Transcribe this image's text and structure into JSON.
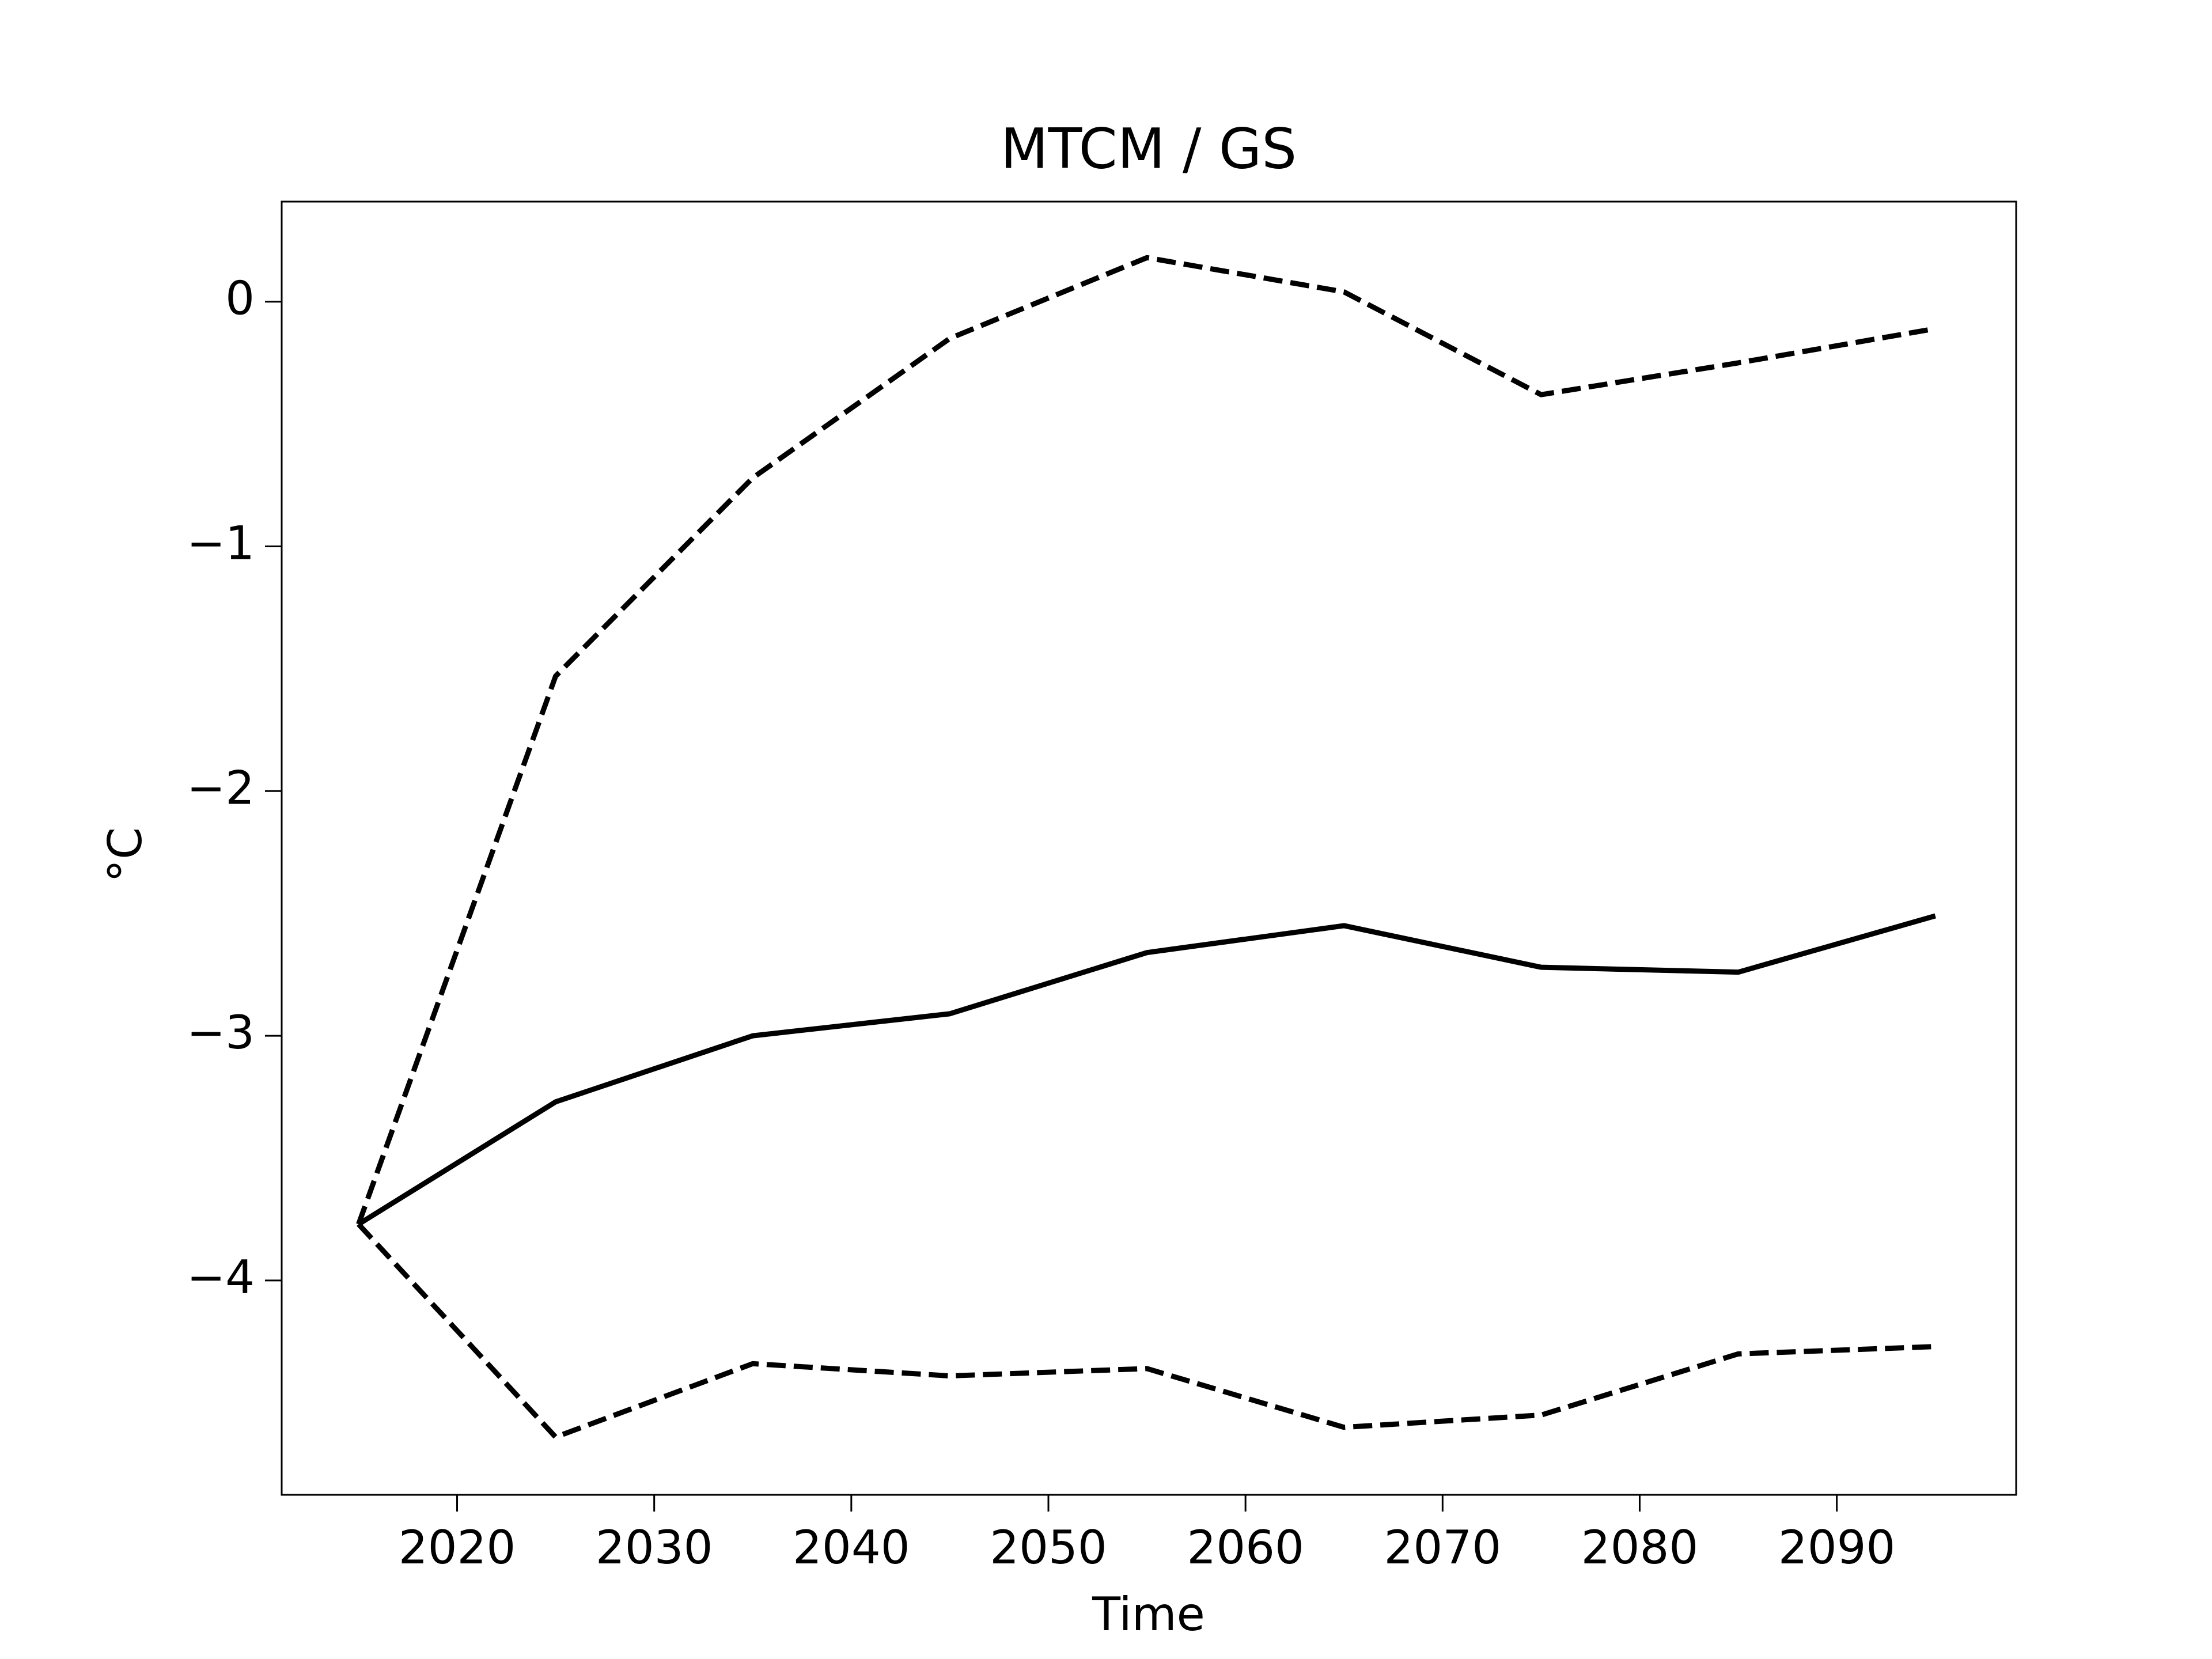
{
  "chart_data": {
    "type": "line",
    "title": "MTCM / GS",
    "x_label": "Time",
    "y_label": "°C",
    "x": [
      2015,
      2025,
      2035,
      2045,
      2055,
      2065,
      2075,
      2085,
      2095
    ],
    "series": [
      {
        "color": "#000000",
        "linestyle": "solid",
        "values": [
          -3.77,
          -3.27,
          -3.0,
          -2.91,
          -2.66,
          -2.55,
          -2.72,
          -2.74,
          -2.51
        ]
      },
      {
        "color": "#000000",
        "linestyle": "dashed",
        "values": [
          -3.77,
          -1.53,
          -0.72,
          -0.15,
          0.18,
          0.04,
          -0.38,
          -0.25,
          -0.11
        ]
      },
      {
        "color": "#000000",
        "linestyle": "dashed",
        "values": [
          -3.77,
          -4.64,
          -4.34,
          -4.39,
          -4.36,
          -4.6,
          -4.55,
          -4.3,
          -4.27
        ]
      }
    ],
    "xlim": [
      2011.1,
      2099.1
    ],
    "xticks": [
      2020,
      2030,
      2040,
      2050,
      2060,
      2070,
      2080,
      2090
    ],
    "ylim": [
      -4.876,
      0.409
    ],
    "yticks": [
      {
        "value": -4,
        "label": "−4"
      },
      {
        "value": -3,
        "label": "−3"
      },
      {
        "value": -2,
        "label": "−2"
      },
      {
        "value": -1,
        "label": "−1"
      },
      0
    ],
    "grid": false
  }
}
